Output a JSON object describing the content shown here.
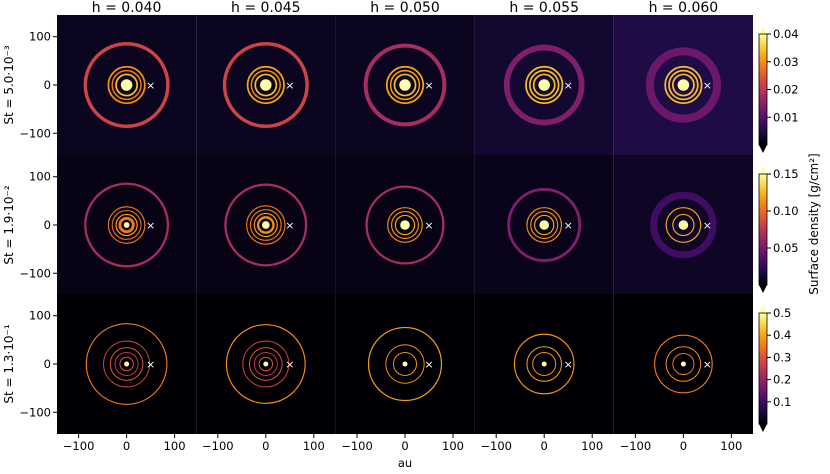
{
  "figure": {
    "column_titles": [
      "h = 0.040",
      "h = 0.045",
      "h = 0.050",
      "h = 0.055",
      "h = 0.060"
    ],
    "row_labels": [
      "St = 5.0·10⁻³",
      "St = 1.9·10⁻²",
      "St = 1.3·10⁻¹"
    ],
    "xlabel": "au",
    "colorbar_label": "Surface density [g/cm²]",
    "planet_marker": "×"
  },
  "chart_data": {
    "type": "heatmap",
    "description_of_axes": "Face-on dust surface density maps, 3 rows (Stokes number) × 5 columns (aspect ratio h)",
    "x_axis": {
      "label": "au",
      "range": [
        -145,
        145
      ],
      "ticks": [
        -100,
        0,
        100
      ],
      "tick_labels": [
        "−100",
        "0",
        "100"
      ]
    },
    "y_axis": {
      "range": [
        -145,
        145
      ],
      "ticks": [
        100,
        0,
        -100
      ],
      "tick_labels": [
        "100",
        "0",
        "−100"
      ]
    },
    "columns": [
      {
        "h": 0.04,
        "title": "h = 0.040"
      },
      {
        "h": 0.045,
        "title": "h = 0.045"
      },
      {
        "h": 0.05,
        "title": "h = 0.050"
      },
      {
        "h": 0.055,
        "title": "h = 0.055"
      },
      {
        "h": 0.06,
        "title": "h = 0.060"
      }
    ],
    "rows": [
      {
        "St": 0.005,
        "label": "St = 5.0·10⁻³",
        "colorbar": {
          "min": 0,
          "max": 0.04,
          "ticks": [
            0.01,
            0.02,
            0.03,
            0.04
          ],
          "tick_labels": [
            "0.01",
            "0.02",
            "0.03",
            "0.04"
          ]
        }
      },
      {
        "St": 0.019,
        "label": "St = 1.9·10⁻²",
        "colorbar": {
          "min": 0,
          "max": 0.15,
          "ticks": [
            0.05,
            0.1,
            0.15
          ],
          "tick_labels": [
            "0.05",
            "0.10",
            "0.15"
          ]
        }
      },
      {
        "St": 0.13,
        "label": "St = 1.3·10⁻¹",
        "colorbar": {
          "min": 0,
          "max": 0.5,
          "ticks": [
            0.1,
            0.2,
            0.3,
            0.4,
            0.5
          ],
          "tick_labels": [
            "0.1",
            "0.2",
            "0.3",
            "0.4",
            "0.5"
          ]
        }
      }
    ],
    "planet": {
      "x": 50,
      "y": 0,
      "marker": "×"
    },
    "colormap": "inferno",
    "colormap_stops": [
      "#000004",
      "#1b0c41",
      "#4a0c6b",
      "#781c6d",
      "#a52c60",
      "#cf4446",
      "#ed6925",
      "#fb9b06",
      "#f7d13d",
      "#fcffa4"
    ],
    "panels": [
      [
        {
          "rings": [
            {
              "r": 12,
              "v": 1.0,
              "w": 10
            },
            {
              "r": 22,
              "v": 0.85,
              "w": 3
            },
            {
              "r": 30,
              "v": 0.7,
              "w": 2.5
            },
            {
              "r": 38,
              "v": 0.75,
              "w": 3
            },
            {
              "r": 86,
              "v": 0.55,
              "w": 6
            }
          ],
          "bg": 0.05
        },
        {
          "rings": [
            {
              "r": 12,
              "v": 1.0,
              "w": 10
            },
            {
              "r": 22,
              "v": 0.85,
              "w": 3
            },
            {
              "r": 30,
              "v": 0.75,
              "w": 2.5
            },
            {
              "r": 38,
              "v": 0.8,
              "w": 3
            },
            {
              "r": 86,
              "v": 0.55,
              "w": 6
            }
          ],
          "bg": 0.05
        },
        {
          "rings": [
            {
              "r": 12,
              "v": 1.0,
              "w": 10
            },
            {
              "r": 22,
              "v": 0.85,
              "w": 3
            },
            {
              "r": 30,
              "v": 0.8,
              "w": 2.5
            },
            {
              "r": 38,
              "v": 0.8,
              "w": 3
            },
            {
              "r": 82,
              "v": 0.45,
              "w": 7
            }
          ],
          "bg": 0.05
        },
        {
          "rings": [
            {
              "r": 12,
              "v": 1.0,
              "w": 10
            },
            {
              "r": 22,
              "v": 0.85,
              "w": 3
            },
            {
              "r": 30,
              "v": 0.85,
              "w": 3
            },
            {
              "r": 38,
              "v": 0.85,
              "w": 3
            },
            {
              "r": 78,
              "v": 0.35,
              "w": 10
            }
          ],
          "bg": 0.08
        },
        {
          "rings": [
            {
              "r": 12,
              "v": 1.0,
              "w": 10
            },
            {
              "r": 22,
              "v": 0.85,
              "w": 3
            },
            {
              "r": 30,
              "v": 0.85,
              "w": 3
            },
            {
              "r": 38,
              "v": 0.85,
              "w": 3
            },
            {
              "r": 70,
              "v": 0.3,
              "w": 14
            }
          ],
          "bg": 0.12
        }
      ],
      [
        {
          "rings": [
            {
              "r": 6,
              "v": 1.0,
              "w": 6
            },
            {
              "r": 14,
              "v": 0.7,
              "w": 5
            },
            {
              "r": 22,
              "v": 0.8,
              "w": 2
            },
            {
              "r": 30,
              "v": 0.65,
              "w": 2
            },
            {
              "r": 38,
              "v": 0.7,
              "w": 2
            },
            {
              "r": 86,
              "v": 0.45,
              "w": 4
            }
          ],
          "bg": 0.03
        },
        {
          "rings": [
            {
              "r": 8,
              "v": 1.0,
              "w": 8
            },
            {
              "r": 16,
              "v": 0.75,
              "w": 4
            },
            {
              "r": 24,
              "v": 0.8,
              "w": 2
            },
            {
              "r": 32,
              "v": 0.7,
              "w": 2
            },
            {
              "r": 40,
              "v": 0.7,
              "w": 2
            },
            {
              "r": 84,
              "v": 0.45,
              "w": 4
            }
          ],
          "bg": 0.03
        },
        {
          "rings": [
            {
              "r": 10,
              "v": 1.0,
              "w": 8
            },
            {
              "r": 20,
              "v": 0.8,
              "w": 2
            },
            {
              "r": 28,
              "v": 0.75,
              "w": 2
            },
            {
              "r": 36,
              "v": 0.75,
              "w": 2
            },
            {
              "r": 80,
              "v": 0.45,
              "w": 4
            }
          ],
          "bg": 0.03
        },
        {
          "rings": [
            {
              "r": 10,
              "v": 1.0,
              "w": 8
            },
            {
              "r": 20,
              "v": 0.8,
              "w": 2
            },
            {
              "r": 28,
              "v": 0.75,
              "w": 2
            },
            {
              "r": 36,
              "v": 0.75,
              "w": 2
            },
            {
              "r": 74,
              "v": 0.35,
              "w": 5
            }
          ],
          "bg": 0.04
        },
        {
          "rings": [
            {
              "r": 10,
              "v": 1.0,
              "w": 8
            },
            {
              "r": 22,
              "v": 0.8,
              "w": 2
            },
            {
              "r": 36,
              "v": 0.8,
              "w": 2
            },
            {
              "r": 62,
              "v": 0.2,
              "w": 12
            }
          ],
          "bg": 0.06
        }
      ],
      [
        {
          "rings": [
            {
              "r": 4,
              "v": 1.0,
              "w": 6
            },
            {
              "r": 14,
              "v": 0.6,
              "w": 1.5
            },
            {
              "r": 24,
              "v": 0.5,
              "w": 1.5
            },
            {
              "r": 34,
              "v": 0.6,
              "w": 1.5
            },
            {
              "r": 48,
              "v": 0.55,
              "w": 1.5
            },
            {
              "r": 84,
              "v": 0.7,
              "w": 2
            }
          ],
          "bg": 0.0
        },
        {
          "rings": [
            {
              "r": 4,
              "v": 1.0,
              "w": 6
            },
            {
              "r": 14,
              "v": 0.6,
              "w": 1.5
            },
            {
              "r": 24,
              "v": 0.5,
              "w": 1.5
            },
            {
              "r": 34,
              "v": 0.6,
              "w": 1.5
            },
            {
              "r": 48,
              "v": 0.55,
              "w": 1.5
            },
            {
              "r": 82,
              "v": 0.75,
              "w": 2
            }
          ],
          "bg": 0.0
        },
        {
          "rings": [
            {
              "r": 4,
              "v": 1.0,
              "w": 6
            },
            {
              "r": 24,
              "v": 0.75,
              "w": 1.5
            },
            {
              "r": 40,
              "v": 0.75,
              "w": 1.5
            },
            {
              "r": 76,
              "v": 0.8,
              "w": 2
            }
          ],
          "bg": 0.0
        },
        {
          "rings": [
            {
              "r": 4,
              "v": 1.0,
              "w": 6
            },
            {
              "r": 24,
              "v": 0.75,
              "w": 1.5
            },
            {
              "r": 36,
              "v": 0.8,
              "w": 1.5
            },
            {
              "r": 62,
              "v": 0.75,
              "w": 2
            }
          ],
          "bg": 0.0
        },
        {
          "rings": [
            {
              "r": 4,
              "v": 1.0,
              "w": 6
            },
            {
              "r": 22,
              "v": 0.7,
              "w": 1.5
            },
            {
              "r": 36,
              "v": 0.75,
              "w": 1.5
            },
            {
              "r": 60,
              "v": 0.7,
              "w": 2
            }
          ],
          "bg": 0.0
        }
      ]
    ]
  }
}
